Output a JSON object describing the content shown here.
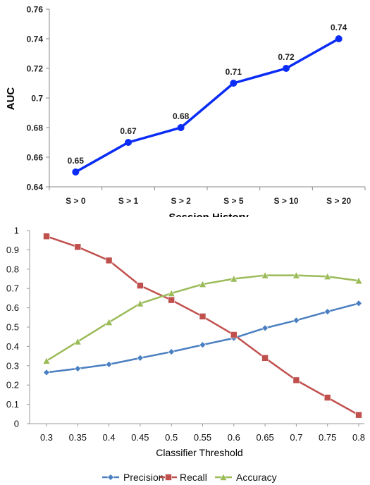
{
  "chart_data": [
    {
      "type": "line",
      "categories": [
        "S > 0",
        "S > 1",
        "S > 2",
        "S > 5",
        "S > 10",
        "S > 20"
      ],
      "values": [
        0.65,
        0.67,
        0.68,
        0.71,
        0.72,
        0.74
      ],
      "data_labels": [
        "0.65",
        "0.67",
        "0.68",
        "0.71",
        "0.72",
        "0.74"
      ],
      "xlabel": "Session History",
      "ylabel": "AUC",
      "ylim": [
        0.64,
        0.76
      ],
      "yticks": [
        "0.64",
        "0.66",
        "0.68",
        "0.7",
        "0.72",
        "0.74",
        "0.76"
      ],
      "grid": false,
      "color": "#0a2cf5"
    },
    {
      "type": "line",
      "categories": [
        "0.3",
        "0.35",
        "0.4",
        "0.45",
        "0.5",
        "0.55",
        "0.6",
        "0.65",
        "0.7",
        "0.75",
        "0.8"
      ],
      "series": [
        {
          "name": "Precision",
          "color": "#4a7fc1",
          "marker": "diamond",
          "values": [
            0.265,
            0.285,
            0.307,
            0.34,
            0.372,
            0.408,
            0.443,
            0.495,
            0.535,
            0.58,
            0.623
          ]
        },
        {
          "name": "Recall",
          "color": "#c0504d",
          "marker": "square",
          "values": [
            0.97,
            0.915,
            0.845,
            0.715,
            0.64,
            0.555,
            0.46,
            0.34,
            0.225,
            0.135,
            0.045
          ]
        },
        {
          "name": "Accuracy",
          "color": "#9bbb59",
          "marker": "triangle",
          "values": [
            0.325,
            0.425,
            0.525,
            0.622,
            0.675,
            0.722,
            0.75,
            0.768,
            0.768,
            0.762,
            0.74
          ]
        }
      ],
      "xlabel": "Classifier Threshold",
      "ylim": [
        0,
        1
      ],
      "yticks": [
        "0",
        "0.1",
        "0.2",
        "0.3",
        "0.4",
        "0.5",
        "0.6",
        "0.7",
        "0.8",
        "0.9",
        "1"
      ],
      "grid": false,
      "legend": "bottom"
    }
  ]
}
